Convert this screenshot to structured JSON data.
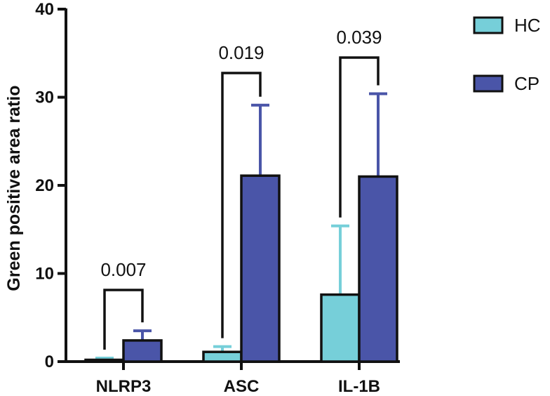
{
  "chart_data": {
    "type": "bar",
    "categories": [
      "NLRP3",
      "ASC",
      "IL-1B"
    ],
    "series": [
      {
        "name": "HC",
        "values": [
          0.2,
          1.1,
          7.6
        ],
        "error": [
          0.2,
          0.6,
          7.8
        ],
        "color": "#76cfd9"
      },
      {
        "name": "CP",
        "values": [
          2.4,
          21.1,
          21.0
        ],
        "error": [
          1.1,
          8.0,
          9.4
        ],
        "color": "#4a55a8"
      }
    ],
    "ylabel": "Green positive area ratio",
    "xlabel": "",
    "ylim": [
      0,
      40
    ],
    "yticks": [
      "0",
      "10",
      "20",
      "30",
      "40"
    ],
    "significance": [
      {
        "category": "NLRP3",
        "label": "0.007"
      },
      {
        "category": "ASC",
        "label": "0.019"
      },
      {
        "category": "IL-1B",
        "label": "0.039"
      }
    ],
    "legend_position": "top-right",
    "grid": false
  }
}
